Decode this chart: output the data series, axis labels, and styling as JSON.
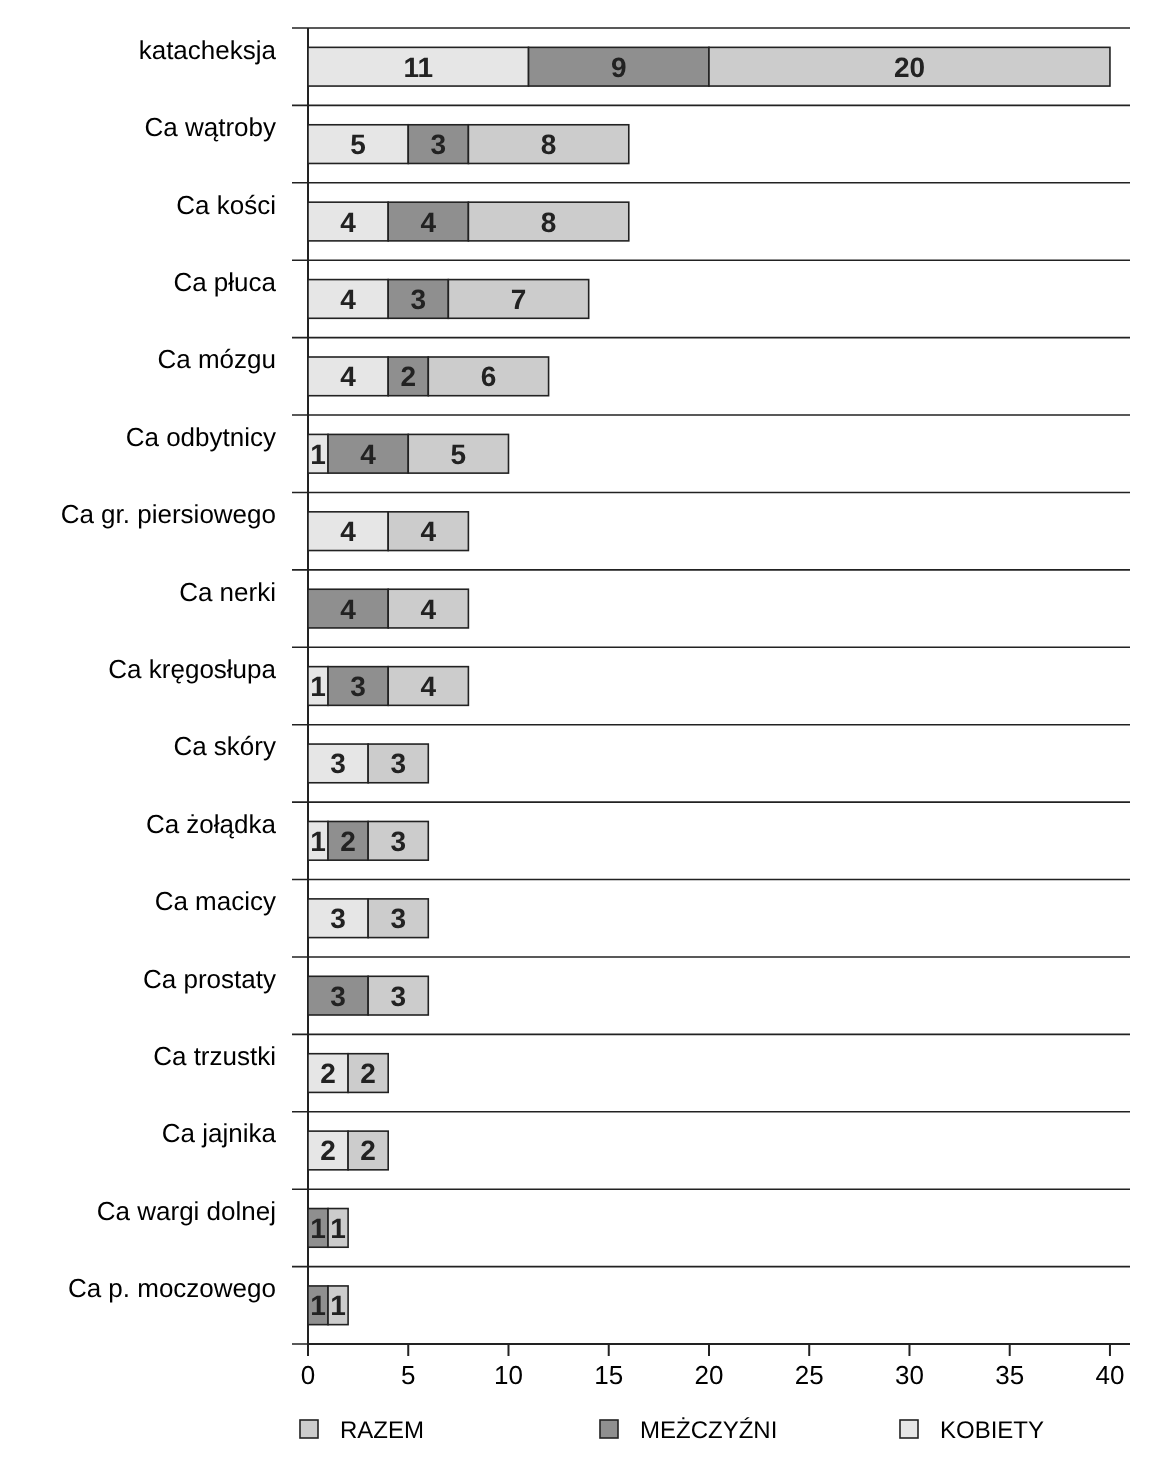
{
  "chart_data": {
    "type": "bar",
    "orientation": "horizontal",
    "stacked": true,
    "data_labels": true,
    "grid": "y",
    "legend": "bottom",
    "categories": [
      "katacheksja",
      "Ca wątroby",
      "Ca kości",
      "Ca płuca",
      "Ca mózgu",
      "Ca odbytnicy",
      "Ca gr. piersiowego",
      "Ca nerki",
      "Ca kręgosłupa",
      "Ca skóry",
      "Ca żołądka",
      "Ca macicy",
      "Ca prostaty",
      "Ca trzustki",
      "Ca jajnika",
      "Ca wargi dolnej",
      "Ca p. moczowego"
    ],
    "xlim": [
      0,
      41
    ],
    "xticks": [
      0,
      5,
      10,
      15,
      20,
      25,
      30,
      35,
      40
    ],
    "series": [
      {
        "name": "KOBIETY",
        "color": "#e6e6e6",
        "values": [
          11,
          5,
          4,
          4,
          4,
          1,
          4,
          null,
          1,
          3,
          1,
          3,
          null,
          2,
          2,
          null,
          null
        ]
      },
      {
        "name": "MEŻCZYŹNI",
        "color": "#8f8f8f",
        "values": [
          9,
          3,
          4,
          3,
          2,
          4,
          null,
          4,
          3,
          null,
          2,
          null,
          3,
          null,
          null,
          1,
          1
        ]
      },
      {
        "name": "RAZEM",
        "color": "#cccccc",
        "values": [
          20,
          8,
          8,
          7,
          6,
          5,
          4,
          4,
          4,
          3,
          3,
          3,
          3,
          2,
          2,
          1,
          1
        ]
      }
    ]
  }
}
